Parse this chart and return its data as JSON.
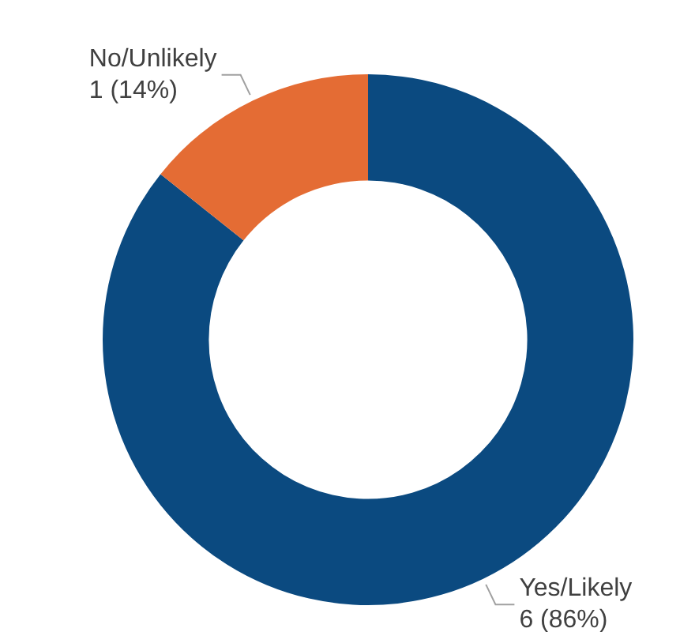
{
  "chart_data": {
    "type": "donut",
    "categories": [
      "Yes/Likely",
      "No/Unlikely"
    ],
    "values": [
      6,
      1
    ],
    "colors": [
      "#0b4a80",
      "#e46c34"
    ],
    "value_labels": [
      "6 (86%)",
      "1 (14%)"
    ],
    "legend": false
  }
}
